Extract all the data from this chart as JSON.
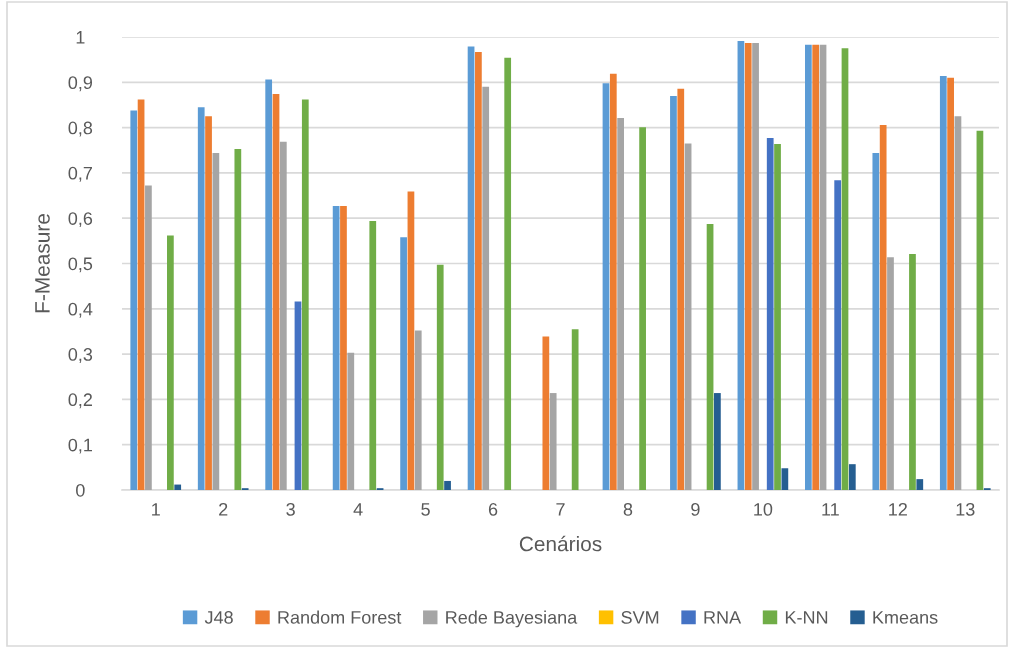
{
  "chart_data": {
    "type": "bar",
    "xlabel": "Cenários",
    "ylabel": "F-Measure",
    "categories": [
      "1",
      "2",
      "3",
      "4",
      "5",
      "6",
      "7",
      "8",
      "9",
      "10",
      "11",
      "12",
      "13"
    ],
    "series": [
      {
        "name": "J48",
        "color": "#5b9bd5",
        "values": [
          0.838,
          0.845,
          0.906,
          0.627,
          0.558,
          0.979,
          0,
          0.898,
          0.87,
          0.991,
          0.983,
          0.744,
          0.914
        ]
      },
      {
        "name": "Random Forest",
        "color": "#ed7d31",
        "values": [
          0.862,
          0.825,
          0.874,
          0.627,
          0.659,
          0.967,
          0.339,
          0.919,
          0.886,
          0.987,
          0.983,
          0.806,
          0.91
        ]
      },
      {
        "name": "Rede Bayesiana",
        "color": "#a5a5a5",
        "values": [
          0.672,
          0.744,
          0.769,
          0.303,
          0.352,
          0.89,
          0.214,
          0.821,
          0.765,
          0.987,
          0.983,
          0.514,
          0.825
        ]
      },
      {
        "name": "SVM",
        "color": "#ffc000",
        "values": [
          0,
          0,
          0,
          0,
          0,
          0,
          0,
          0,
          0,
          0,
          0,
          0,
          0
        ]
      },
      {
        "name": "RNA",
        "color": "#4472c4",
        "values": [
          0,
          0,
          0.416,
          0,
          0,
          0,
          0,
          0,
          0,
          0.777,
          0.684,
          0,
          0
        ]
      },
      {
        "name": "K-NN",
        "color": "#70ad47",
        "values": [
          0.562,
          0.753,
          0.862,
          0.594,
          0.497,
          0.954,
          0.355,
          0.801,
          0.587,
          0.764,
          0.975,
          0.521,
          0.793
        ]
      },
      {
        "name": "Kmeans",
        "color": "#255e91",
        "values": [
          0.012,
          0.004,
          0,
          0.004,
          0.02,
          0,
          0,
          0,
          0.214,
          0.048,
          0.057,
          0.024,
          0.004
        ]
      }
    ],
    "ylim": [
      0,
      1
    ],
    "yticks": [
      0,
      {
        "value": 0.1,
        "label": "0,1"
      },
      {
        "value": 0.2,
        "label": "0,2"
      },
      {
        "value": 0.3,
        "label": "0,3"
      },
      {
        "value": 0.4,
        "label": "0,4"
      },
      {
        "value": 0.5,
        "label": "0,5"
      },
      {
        "value": 0.6,
        "label": "0,6"
      },
      {
        "value": 0.7,
        "label": "0,7"
      },
      {
        "value": 0.8,
        "label": "0,8"
      },
      {
        "value": 0.9,
        "label": "0,9"
      },
      1
    ],
    "grid": "y",
    "legend": "bottom"
  }
}
